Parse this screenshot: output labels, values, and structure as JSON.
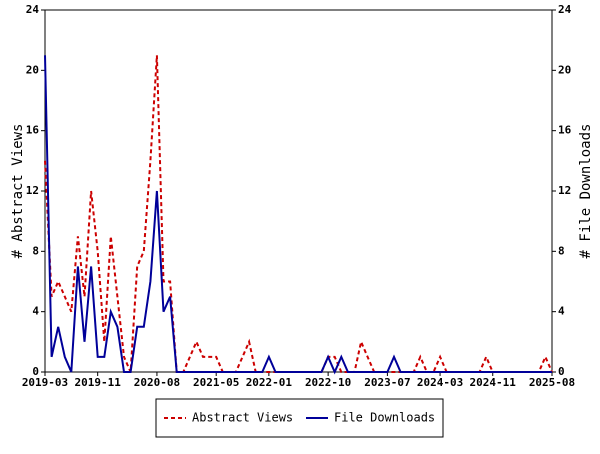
{
  "chart_data": {
    "type": "line",
    "ylabel": "# Abstract Views",
    "y2label": "# File Downloads",
    "x": [
      "2019-03",
      "2019-04",
      "2019-05",
      "2019-06",
      "2019-07",
      "2019-08",
      "2019-09",
      "2019-10",
      "2019-11",
      "2019-12",
      "2020-01",
      "2020-02",
      "2020-03",
      "2020-04",
      "2020-05",
      "2020-06",
      "2020-07",
      "2020-08",
      "2020-09",
      "2020-10",
      "2020-11",
      "2020-12",
      "2021-01",
      "2021-02",
      "2021-03",
      "2021-04",
      "2021-05",
      "2021-06",
      "2021-07",
      "2021-08",
      "2021-09",
      "2021-10",
      "2021-11",
      "2021-12",
      "2022-01",
      "2022-02",
      "2022-03",
      "2022-04",
      "2022-05",
      "2022-06",
      "2022-07",
      "2022-08",
      "2022-09",
      "2022-10",
      "2022-11",
      "2022-12",
      "2023-01",
      "2023-02",
      "2023-03",
      "2023-04",
      "2023-05",
      "2023-06",
      "2023-07",
      "2023-08",
      "2023-09",
      "2023-10",
      "2023-11",
      "2023-12",
      "2024-01",
      "2024-02",
      "2024-03",
      "2024-04",
      "2024-05",
      "2024-06",
      "2024-07",
      "2024-08",
      "2024-09",
      "2024-10",
      "2024-11",
      "2024-12",
      "2025-01",
      "2025-02",
      "2025-03",
      "2025-04",
      "2025-05",
      "2025-06",
      "2025-07",
      "2025-08"
    ],
    "xticks": [
      "2019-03",
      "2019-11",
      "2020-08",
      "2021-05",
      "2022-01",
      "2022-10",
      "2023-07",
      "2024-03",
      "2024-11",
      "2025-08"
    ],
    "ylim": [
      0,
      24
    ],
    "yticks": [
      0,
      4,
      8,
      12,
      16,
      20,
      24
    ],
    "y2lim": [
      0,
      24
    ],
    "y2ticks": [
      0,
      4,
      8,
      12,
      16,
      20,
      24
    ],
    "series": [
      {
        "name": "Abstract Views",
        "color": "#cc0000",
        "dashed": true,
        "values": [
          14,
          5,
          6,
          5,
          4,
          9,
          5,
          12,
          8,
          2,
          9,
          5,
          1,
          0,
          7,
          8,
          14,
          21,
          6,
          6,
          0,
          0,
          1,
          2,
          1,
          1,
          1,
          0,
          0,
          0,
          1,
          2,
          0,
          0,
          0,
          0,
          0,
          0,
          0,
          0,
          0,
          0,
          0,
          1,
          1,
          0,
          0,
          0,
          2,
          1,
          0,
          0,
          0,
          0,
          0,
          0,
          0,
          1,
          0,
          0,
          1,
          0,
          0,
          0,
          0,
          0,
          0,
          1,
          0,
          0,
          0,
          0,
          0,
          0,
          0,
          0,
          1,
          0
        ]
      },
      {
        "name": "File Downloads",
        "color": "#000099",
        "axis": "y2",
        "dashed": false,
        "values": [
          21,
          1,
          3,
          1,
          0,
          7,
          2,
          7,
          1,
          1,
          4,
          3,
          0,
          0,
          3,
          3,
          6,
          12,
          4,
          5,
          0,
          0,
          0,
          0,
          0,
          0,
          0,
          0,
          0,
          0,
          0,
          0,
          0,
          0,
          1,
          0,
          0,
          0,
          0,
          0,
          0,
          0,
          0,
          1,
          0,
          1,
          0,
          0,
          0,
          0,
          0,
          0,
          0,
          1,
          0,
          0,
          0,
          0,
          0,
          0,
          0,
          0,
          0,
          0,
          0,
          0,
          0,
          0,
          0,
          0,
          0,
          0,
          0,
          0,
          0,
          0,
          0,
          0
        ]
      }
    ]
  }
}
